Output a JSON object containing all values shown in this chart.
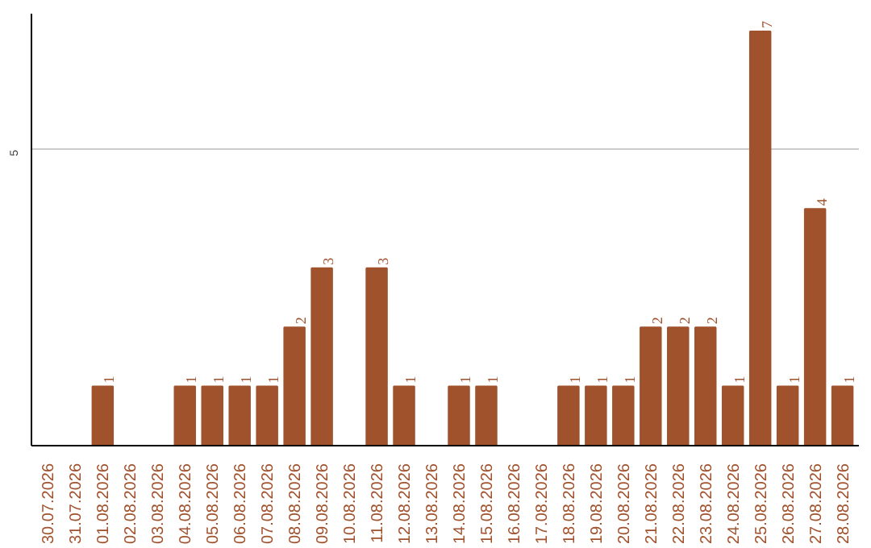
{
  "chart_data": {
    "type": "bar",
    "categories": [
      "30.07.2026",
      "31.07.2026",
      "01.08.2026",
      "02.08.2026",
      "03.08.2026",
      "04.08.2026",
      "05.08.2026",
      "06.08.2026",
      "07.08.2026",
      "08.08.2026",
      "09.08.2026",
      "10.08.2026",
      "11.08.2026",
      "12.08.2026",
      "13.08.2026",
      "14.08.2026",
      "15.08.2026",
      "16.08.2026",
      "17.08.2026",
      "18.08.2026",
      "19.08.2026",
      "20.08.2026",
      "21.08.2026",
      "22.08.2026",
      "23.08.2026",
      "24.08.2026",
      "25.08.2026",
      "26.08.2026",
      "27.08.2026",
      "28.08.2026"
    ],
    "values": [
      0,
      0,
      1,
      0,
      0,
      1,
      1,
      1,
      1,
      2,
      3,
      0,
      3,
      1,
      0,
      1,
      1,
      0,
      0,
      1,
      1,
      1,
      2,
      2,
      2,
      1,
      7,
      1,
      4,
      1
    ],
    "value_labels": [
      null,
      null,
      "1",
      null,
      null,
      "1",
      "1",
      "1",
      "1",
      "2",
      "3",
      null,
      "3",
      "1",
      null,
      "1",
      "1",
      null,
      null,
      "1",
      "1",
      "1",
      "2",
      "2",
      "2",
      "1",
      "7",
      "1",
      "4",
      "1"
    ],
    "color": "#a0522d",
    "ylim": [
      0,
      7.3
    ],
    "yticks": [
      5
    ],
    "grid": "y"
  }
}
